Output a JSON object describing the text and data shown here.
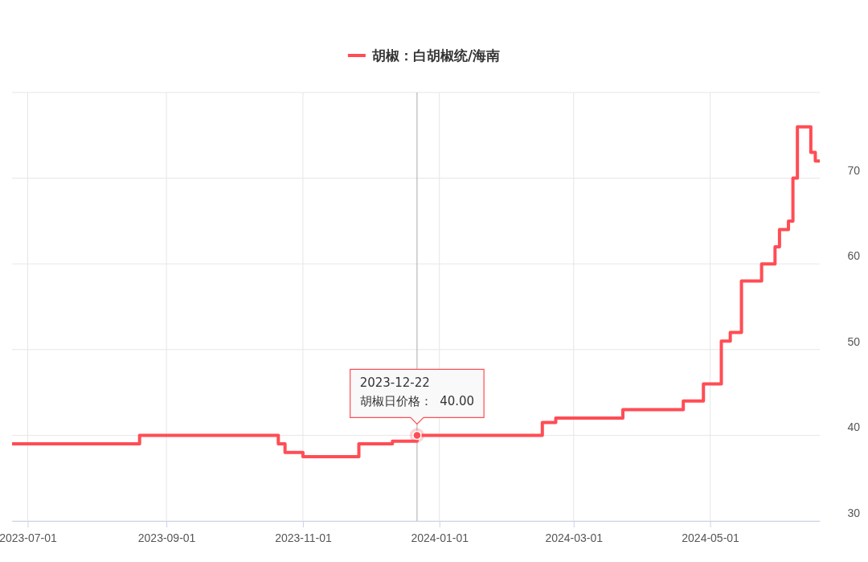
{
  "chart_data": {
    "type": "step",
    "legend": "top",
    "grid": true,
    "marker": "none",
    "line_style": "solid",
    "xlim": [
      "2023-06-24",
      "2024-06-19"
    ],
    "xticks": [
      "2023-07-01",
      "2023-09-01",
      "2023-11-01",
      "2024-01-01",
      "2024-03-01",
      "2024-05-01"
    ],
    "ylim": [
      30,
      80
    ],
    "yticks": [
      30,
      40,
      50,
      60,
      70,
      {
        "value": 80,
        "label": null
      }
    ],
    "x": [
      "2023-06-24",
      "2023-08-20",
      "2023-10-21",
      "2023-10-24",
      "2023-11-01",
      "2023-11-26",
      "2023-12-11",
      "2023-12-22",
      "2024-02-16",
      "2024-02-22",
      "2024-03-23",
      "2024-04-19",
      "2024-04-28",
      "2024-05-06",
      "2024-05-10",
      "2024-05-15",
      "2024-05-24",
      "2024-05-30",
      "2024-06-01",
      "2024-06-05",
      "2024-06-07",
      "2024-06-09",
      "2024-06-15",
      "2024-06-17",
      "2024-06-19"
    ],
    "series": [
      {
        "name": "胡椒：白胡椒统/海南",
        "color": "#ff4d55",
        "values": [
          39,
          40,
          39,
          38,
          37.5,
          39,
          39.3,
          40,
          41.5,
          42,
          43,
          44,
          46,
          51,
          52,
          58,
          60,
          62,
          64,
          65,
          70,
          76,
          73,
          72,
          72
        ]
      }
    ],
    "ref_lines": [
      {
        "axis": "x",
        "value": "2023-12-22",
        "color": "#aaaaaa"
      }
    ],
    "annotations": [
      {
        "text": "2023-12-22\n胡椒日价格：  40.00",
        "x": "2023-12-22",
        "y": 40
      }
    ]
  }
}
